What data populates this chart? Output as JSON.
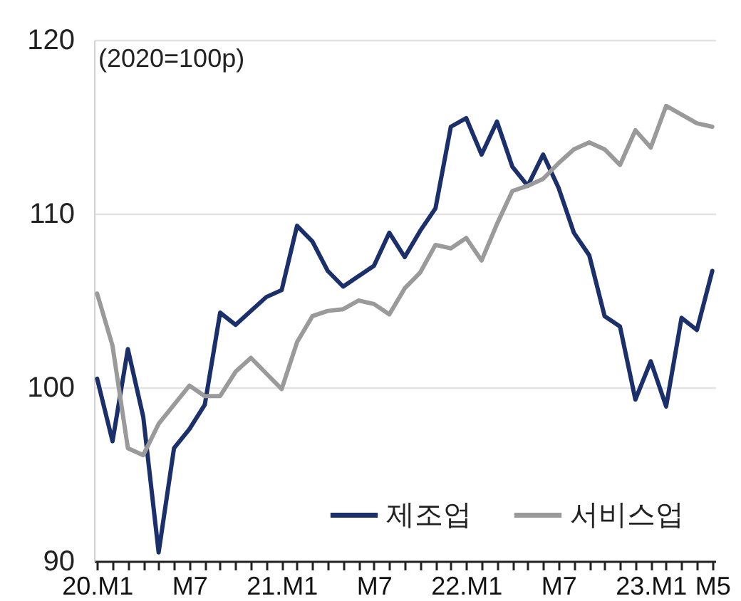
{
  "chart_data": {
    "type": "line",
    "categories": [
      "20.M1",
      null,
      null,
      null,
      null,
      null,
      "M7",
      null,
      null,
      null,
      null,
      null,
      "21.M1",
      null,
      null,
      null,
      null,
      null,
      "M7",
      null,
      null,
      null,
      null,
      null,
      "22.M1",
      null,
      null,
      null,
      null,
      null,
      "M7",
      null,
      null,
      null,
      null,
      null,
      "23.M1",
      null,
      null,
      null,
      "M5"
    ],
    "series": [
      {
        "name": "제조업",
        "color": "#1b2f6b",
        "values": [
          100.5,
          96.9,
          102.2,
          98.3,
          90.5,
          96.5,
          97.6,
          99.0,
          104.3,
          103.6,
          104.4,
          105.2,
          105.6,
          109.3,
          108.4,
          106.7,
          105.8,
          106.4,
          107.0,
          108.9,
          107.5,
          109.0,
          110.3,
          115.0,
          115.5,
          113.4,
          115.3,
          112.7,
          111.6,
          113.4,
          111.5,
          108.9,
          107.6,
          104.1,
          103.5,
          99.3,
          101.5,
          98.9,
          104.0,
          103.3,
          106.7
        ]
      },
      {
        "name": "서비스업",
        "color": "#9a9a9a",
        "values": [
          105.4,
          102.4,
          96.5,
          96.1,
          97.9,
          99.0,
          100.1,
          99.5,
          99.5,
          100.9,
          101.7,
          100.8,
          99.9,
          102.6,
          104.1,
          104.4,
          104.5,
          105.0,
          104.8,
          104.2,
          105.7,
          106.6,
          108.2,
          108.0,
          108.6,
          107.3,
          109.4,
          111.3,
          111.6,
          112.0,
          112.9,
          113.7,
          114.1,
          113.7,
          112.8,
          114.8,
          113.8,
          116.2,
          115.7,
          115.2,
          115.0
        ]
      }
    ],
    "ylim": [
      90,
      120
    ],
    "yticks": [
      90,
      100,
      110,
      120
    ],
    "annotations": [
      "(2020=100p)"
    ],
    "grid": "y",
    "legend": "bottom right"
  }
}
